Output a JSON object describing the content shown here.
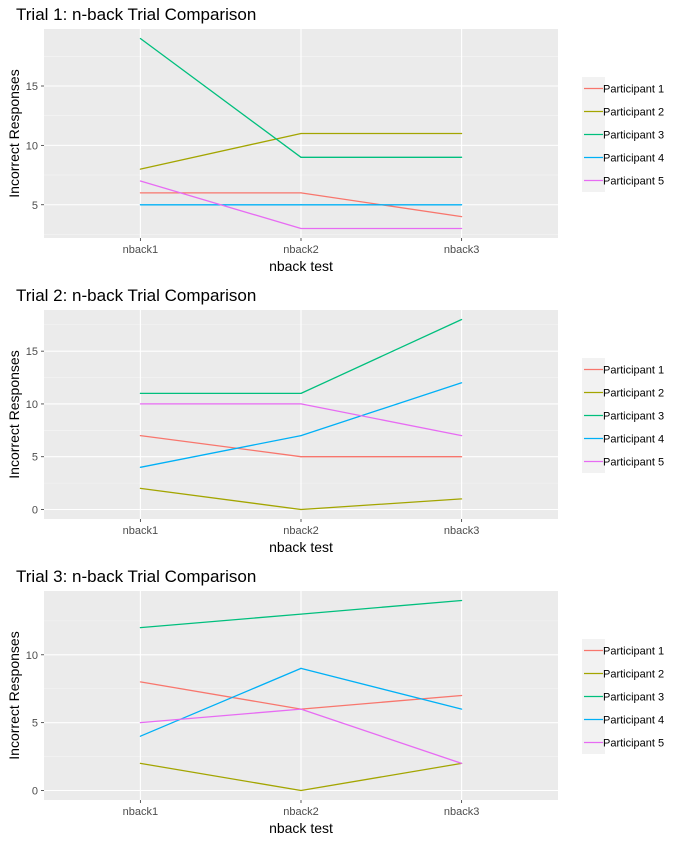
{
  "chart_data": [
    {
      "type": "line",
      "title": "Trial 1: n-back Trial Comparison",
      "xlabel": "nback test",
      "ylabel": "Incorrect Responses",
      "categories": [
        "nback1",
        "nback2",
        "nback3"
      ],
      "yticks": [
        5,
        10,
        15
      ],
      "ylim": [
        2.2,
        19.8
      ],
      "grid": true,
      "legend_position": "right",
      "series": [
        {
          "name": "Participant 1",
          "color": "#F8766D",
          "values": [
            6,
            6,
            4
          ]
        },
        {
          "name": "Participant 2",
          "color": "#A3A500",
          "values": [
            8,
            11,
            11
          ]
        },
        {
          "name": "Participant 3",
          "color": "#00BF7D",
          "values": [
            19,
            9,
            9
          ]
        },
        {
          "name": "Participant 4",
          "color": "#00B0F6",
          "values": [
            5,
            5,
            5
          ]
        },
        {
          "name": "Participant 5",
          "color": "#E76BF3",
          "values": [
            7,
            3,
            3
          ]
        }
      ]
    },
    {
      "type": "line",
      "title": "Trial 2: n-back Trial Comparison",
      "xlabel": "nback test",
      "ylabel": "Incorrect Responses",
      "categories": [
        "nback1",
        "nback2",
        "nback3"
      ],
      "yticks": [
        0,
        5,
        10,
        15
      ],
      "ylim": [
        -0.9,
        18.9
      ],
      "grid": true,
      "legend_position": "right",
      "series": [
        {
          "name": "Participant 1",
          "color": "#F8766D",
          "values": [
            7,
            5,
            5
          ]
        },
        {
          "name": "Participant 2",
          "color": "#A3A500",
          "values": [
            2,
            0,
            1
          ]
        },
        {
          "name": "Participant 3",
          "color": "#00BF7D",
          "values": [
            11,
            11,
            18
          ]
        },
        {
          "name": "Participant 4",
          "color": "#00B0F6",
          "values": [
            4,
            7,
            12
          ]
        },
        {
          "name": "Participant 5",
          "color": "#E76BF3",
          "values": [
            10,
            10,
            7
          ]
        }
      ]
    },
    {
      "type": "line",
      "title": "Trial 3: n-back Trial Comparison",
      "xlabel": "nback test",
      "ylabel": "Incorrect Responses",
      "categories": [
        "nback1",
        "nback2",
        "nback3"
      ],
      "yticks": [
        0,
        5,
        10
      ],
      "ylim": [
        -0.7,
        14.7
      ],
      "grid": true,
      "legend_position": "right",
      "series": [
        {
          "name": "Participant 1",
          "color": "#F8766D",
          "values": [
            8,
            6,
            7
          ]
        },
        {
          "name": "Participant 2",
          "color": "#A3A500",
          "values": [
            2,
            0,
            2
          ]
        },
        {
          "name": "Participant 3",
          "color": "#00BF7D",
          "values": [
            12,
            13,
            14
          ]
        },
        {
          "name": "Participant 4",
          "color": "#00B0F6",
          "values": [
            4,
            9,
            6
          ]
        },
        {
          "name": "Participant 5",
          "color": "#E76BF3",
          "values": [
            5,
            6,
            2
          ]
        }
      ]
    }
  ]
}
